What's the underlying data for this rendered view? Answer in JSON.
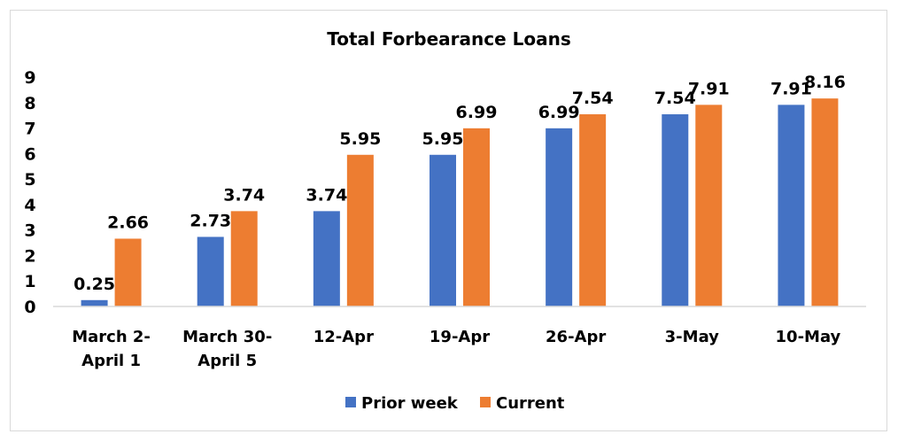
{
  "chart_data": {
    "type": "bar",
    "title": "Total Forbearance Loans",
    "categories": [
      [
        "March 2-",
        "April 1"
      ],
      [
        "March 30-",
        "April 5"
      ],
      [
        "12-Apr"
      ],
      [
        "19-Apr"
      ],
      [
        "26-Apr"
      ],
      [
        "3-May"
      ],
      [
        "10-May"
      ]
    ],
    "series": [
      {
        "name": "Prior week",
        "color": "#4472c4",
        "values": [
          0.25,
          2.73,
          3.74,
          5.95,
          6.99,
          7.54,
          7.91
        ]
      },
      {
        "name": "Current",
        "color": "#ed7d31",
        "values": [
          2.66,
          3.74,
          5.95,
          6.99,
          7.54,
          7.91,
          8.16
        ]
      }
    ],
    "yticks": [
      0,
      1,
      2,
      3,
      4,
      5,
      6,
      7,
      8,
      9
    ],
    "ylim": [
      0,
      9
    ],
    "grid": false,
    "data_labels": true,
    "legend": "bottom"
  }
}
